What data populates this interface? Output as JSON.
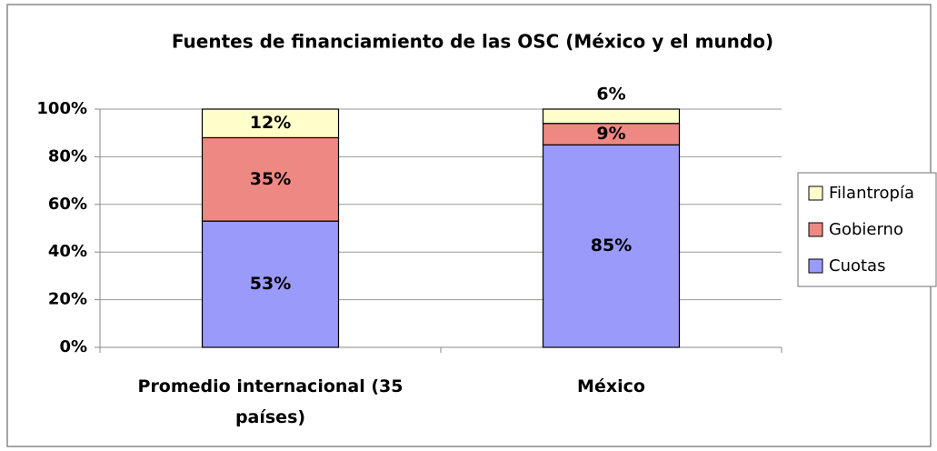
{
  "chart_data": {
    "type": "bar",
    "stacked": true,
    "title": "Fuentes de financiamiento de las OSC (México y el mundo)",
    "categories": [
      "Promedio internacional (35 países)",
      "México"
    ],
    "series": [
      {
        "name": "Cuotas",
        "color": "#9a9afa",
        "values": [
          53,
          85
        ],
        "value_labels": [
          "53%",
          "85%"
        ]
      },
      {
        "name": "Gobierno",
        "color": "#ee8883",
        "values": [
          35,
          9
        ],
        "value_labels": [
          "35%",
          "9%"
        ]
      },
      {
        "name": "Filantropía",
        "color": "#ffffcc",
        "values": [
          12,
          6
        ],
        "value_labels": [
          "12%",
          "6%"
        ]
      }
    ],
    "ylim": [
      0,
      100
    ],
    "yticks": [
      {
        "value": 0,
        "label": "0%"
      },
      {
        "value": 20,
        "label": "20%"
      },
      {
        "value": 40,
        "label": "40%"
      },
      {
        "value": 60,
        "label": "60%"
      },
      {
        "value": 80,
        "label": "80%"
      },
      {
        "value": 100,
        "label": "100%"
      }
    ],
    "grid": true,
    "legend": "right"
  }
}
